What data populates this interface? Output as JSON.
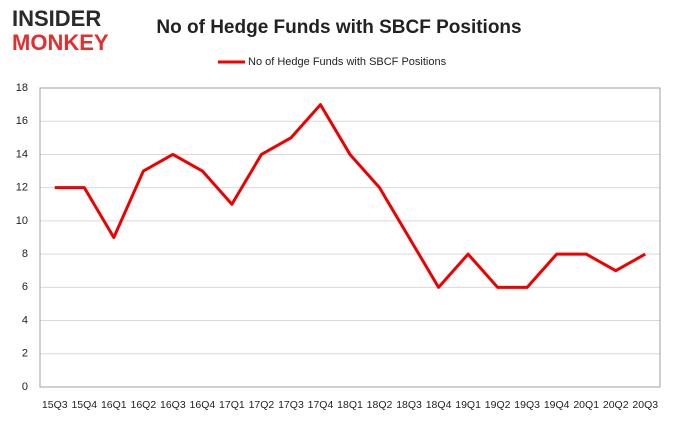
{
  "chart_data": {
    "type": "line",
    "title": "No of Hedge Funds with SBCF Positions",
    "logo": [
      "INSIDER",
      "MONKEY"
    ],
    "categories": [
      "15Q3",
      "15Q4",
      "16Q1",
      "16Q2",
      "16Q3",
      "16Q4",
      "17Q1",
      "17Q2",
      "17Q3",
      "17Q4",
      "18Q1",
      "18Q2",
      "18Q3",
      "18Q4",
      "19Q1",
      "19Q2",
      "19Q3",
      "19Q4",
      "20Q1",
      "20Q2",
      "20Q3"
    ],
    "series": [
      {
        "name": "No of Hedge Funds with SBCF Positions",
        "color": "#ee0000",
        "values": [
          12,
          12,
          9,
          13,
          14,
          13,
          11,
          14,
          15,
          17,
          14,
          12,
          9,
          6,
          8,
          6,
          6,
          8,
          8,
          7,
          8
        ]
      }
    ],
    "ylim": [
      0,
      18
    ],
    "yticks": [
      0,
      2,
      4,
      6,
      8,
      10,
      12,
      14,
      16,
      18
    ],
    "grid": true,
    "legend": "top"
  }
}
